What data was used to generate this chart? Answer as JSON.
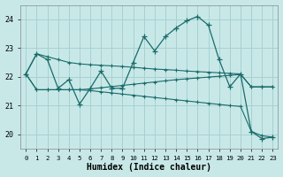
{
  "xlabel": "Humidex (Indice chaleur)",
  "background_color": "#c8e8e8",
  "grid_color": "#a8d0d0",
  "line_color": "#1a6b6b",
  "x": [
    0,
    1,
    2,
    3,
    4,
    5,
    6,
    7,
    8,
    9,
    10,
    11,
    12,
    13,
    14,
    15,
    16,
    17,
    18,
    19,
    20,
    21,
    22,
    23
  ],
  "y_main": [
    22.1,
    22.8,
    22.6,
    21.6,
    21.9,
    21.05,
    21.6,
    22.2,
    21.6,
    21.6,
    22.5,
    23.4,
    22.9,
    23.4,
    23.7,
    23.95,
    24.1,
    23.8,
    22.6,
    21.65,
    22.1,
    20.1,
    19.85,
    19.9
  ],
  "y_line1": [
    22.1,
    22.8,
    22.7,
    22.6,
    22.5,
    22.45,
    22.42,
    22.4,
    22.38,
    22.36,
    22.33,
    22.3,
    22.27,
    22.25,
    22.23,
    22.2,
    22.18,
    22.16,
    22.14,
    22.12,
    22.1,
    21.65,
    21.65,
    21.65
  ],
  "y_line2": [
    22.1,
    21.55,
    21.55,
    21.55,
    21.55,
    21.55,
    21.58,
    21.62,
    21.66,
    21.7,
    21.74,
    21.78,
    21.82,
    21.86,
    21.9,
    21.93,
    21.96,
    21.99,
    22.02,
    22.05,
    22.08,
    21.65,
    21.65,
    21.65
  ],
  "y_line3": [
    22.1,
    21.55,
    21.55,
    21.55,
    21.55,
    21.55,
    21.52,
    21.48,
    21.44,
    21.4,
    21.36,
    21.32,
    21.28,
    21.24,
    21.2,
    21.16,
    21.12,
    21.08,
    21.04,
    21.0,
    20.97,
    20.1,
    19.95,
    19.9
  ],
  "ylim": [
    19.5,
    24.5
  ],
  "yticks": [
    20,
    21,
    22,
    23,
    24
  ],
  "xlim": [
    -0.5,
    23.5
  ]
}
